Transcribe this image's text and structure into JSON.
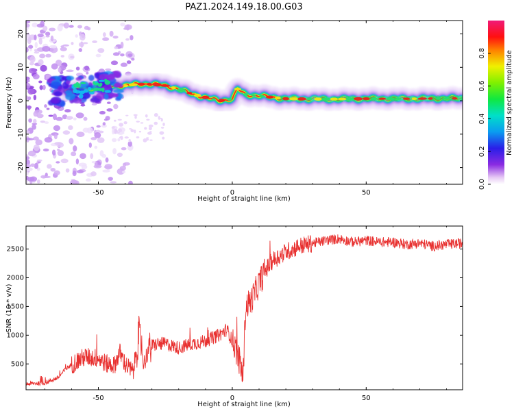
{
  "title": "PAZ1.2024.149.18.00.G03",
  "chart_data": [
    {
      "type": "heatmap",
      "xlabel": "Height of straight line (km)",
      "ylabel": "Frequency (Hz)",
      "xlim": [
        -77,
        86
      ],
      "ylim": [
        -25,
        24
      ],
      "xticks": [
        -50,
        0,
        50
      ],
      "yticks": [
        -20,
        -10,
        0,
        10,
        20
      ],
      "colorbar": {
        "label": "Normalized spectral amplitude",
        "range": [
          0,
          1
        ],
        "ticks": [
          0.0,
          0.2,
          0.4,
          0.6,
          0.8
        ],
        "tick_labels": [
          "0.0",
          "0.2",
          "0.4",
          "0.6",
          "0.8"
        ],
        "colormap": "rainbow (white-violet-blue-cyan-green-yellow-red-pink)"
      },
      "ridge": {
        "x": [
          -60,
          -55,
          -50,
          -45,
          -40,
          -35,
          -30,
          -25,
          -20,
          -15,
          -10,
          -5,
          0,
          2,
          5,
          10,
          15,
          20,
          30,
          40,
          50,
          60,
          70,
          80,
          86
        ],
        "y": [
          3,
          3.5,
          4,
          4.5,
          4.5,
          5,
          5,
          4.5,
          3.5,
          2,
          1,
          0,
          0.5,
          3.5,
          1.8,
          1.5,
          1,
          0.6,
          0.5,
          0.5,
          0.6,
          0.6,
          0.6,
          0.7,
          0.7
        ]
      }
    },
    {
      "type": "line",
      "xlabel": "Height of straight line (km)",
      "ylabel": "SNR (10 * v/v)",
      "xlim": [
        -77,
        86
      ],
      "ylim": [
        50,
        2900
      ],
      "xticks": [
        -50,
        0,
        50
      ],
      "yticks": [
        500,
        1000,
        1500,
        2000,
        2500
      ],
      "color": "#e8302f",
      "series": [
        {
          "x": [
            -77,
            -70,
            -65,
            -62,
            -58,
            -55,
            -50,
            -47,
            -44,
            -42,
            -40,
            -37,
            -35,
            -33,
            -31,
            -28,
            -25,
            -20,
            -15,
            -10,
            -5,
            -2,
            1,
            3,
            4,
            5,
            7,
            9,
            12,
            15,
            20,
            25,
            30,
            35,
            40,
            45,
            50,
            55,
            60,
            65,
            70,
            75,
            80,
            86
          ],
          "y": [
            150,
            170,
            260,
            420,
            550,
            620,
            600,
            500,
            480,
            700,
            500,
            350,
            1000,
            500,
            800,
            850,
            850,
            780,
            850,
            900,
            1000,
            1100,
            800,
            500,
            250,
            1500,
            1600,
            1800,
            2100,
            2300,
            2450,
            2550,
            2600,
            2650,
            2680,
            2620,
            2650,
            2620,
            2620,
            2580,
            2600,
            2550,
            2580,
            2600
          ]
        }
      ]
    }
  ]
}
